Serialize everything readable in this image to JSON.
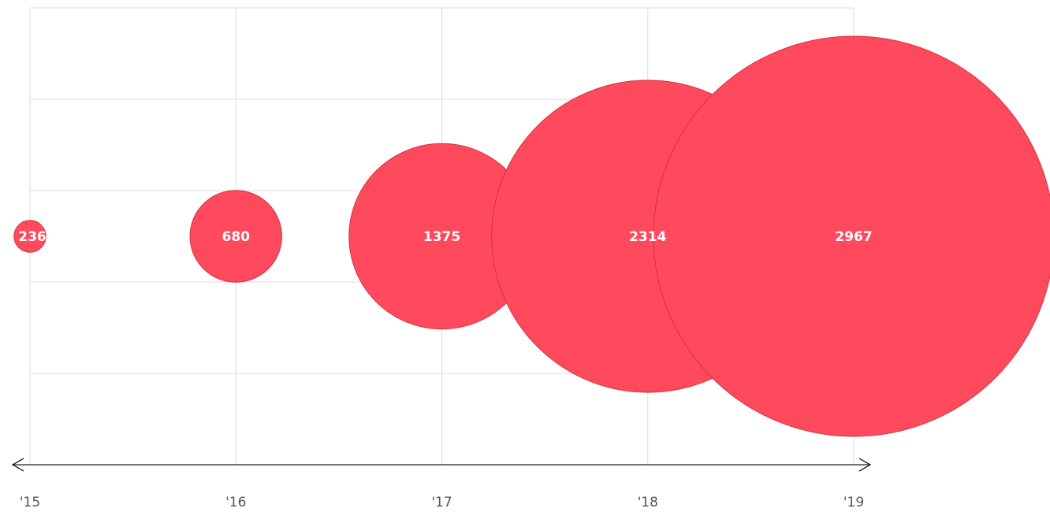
{
  "chart_data": {
    "type": "bubble",
    "categories": [
      "'15",
      "'16",
      "'17",
      "'18",
      "'19"
    ],
    "values": [
      236,
      680,
      1375,
      2314,
      2967
    ],
    "color": "#ff4a5e",
    "grid": true
  }
}
